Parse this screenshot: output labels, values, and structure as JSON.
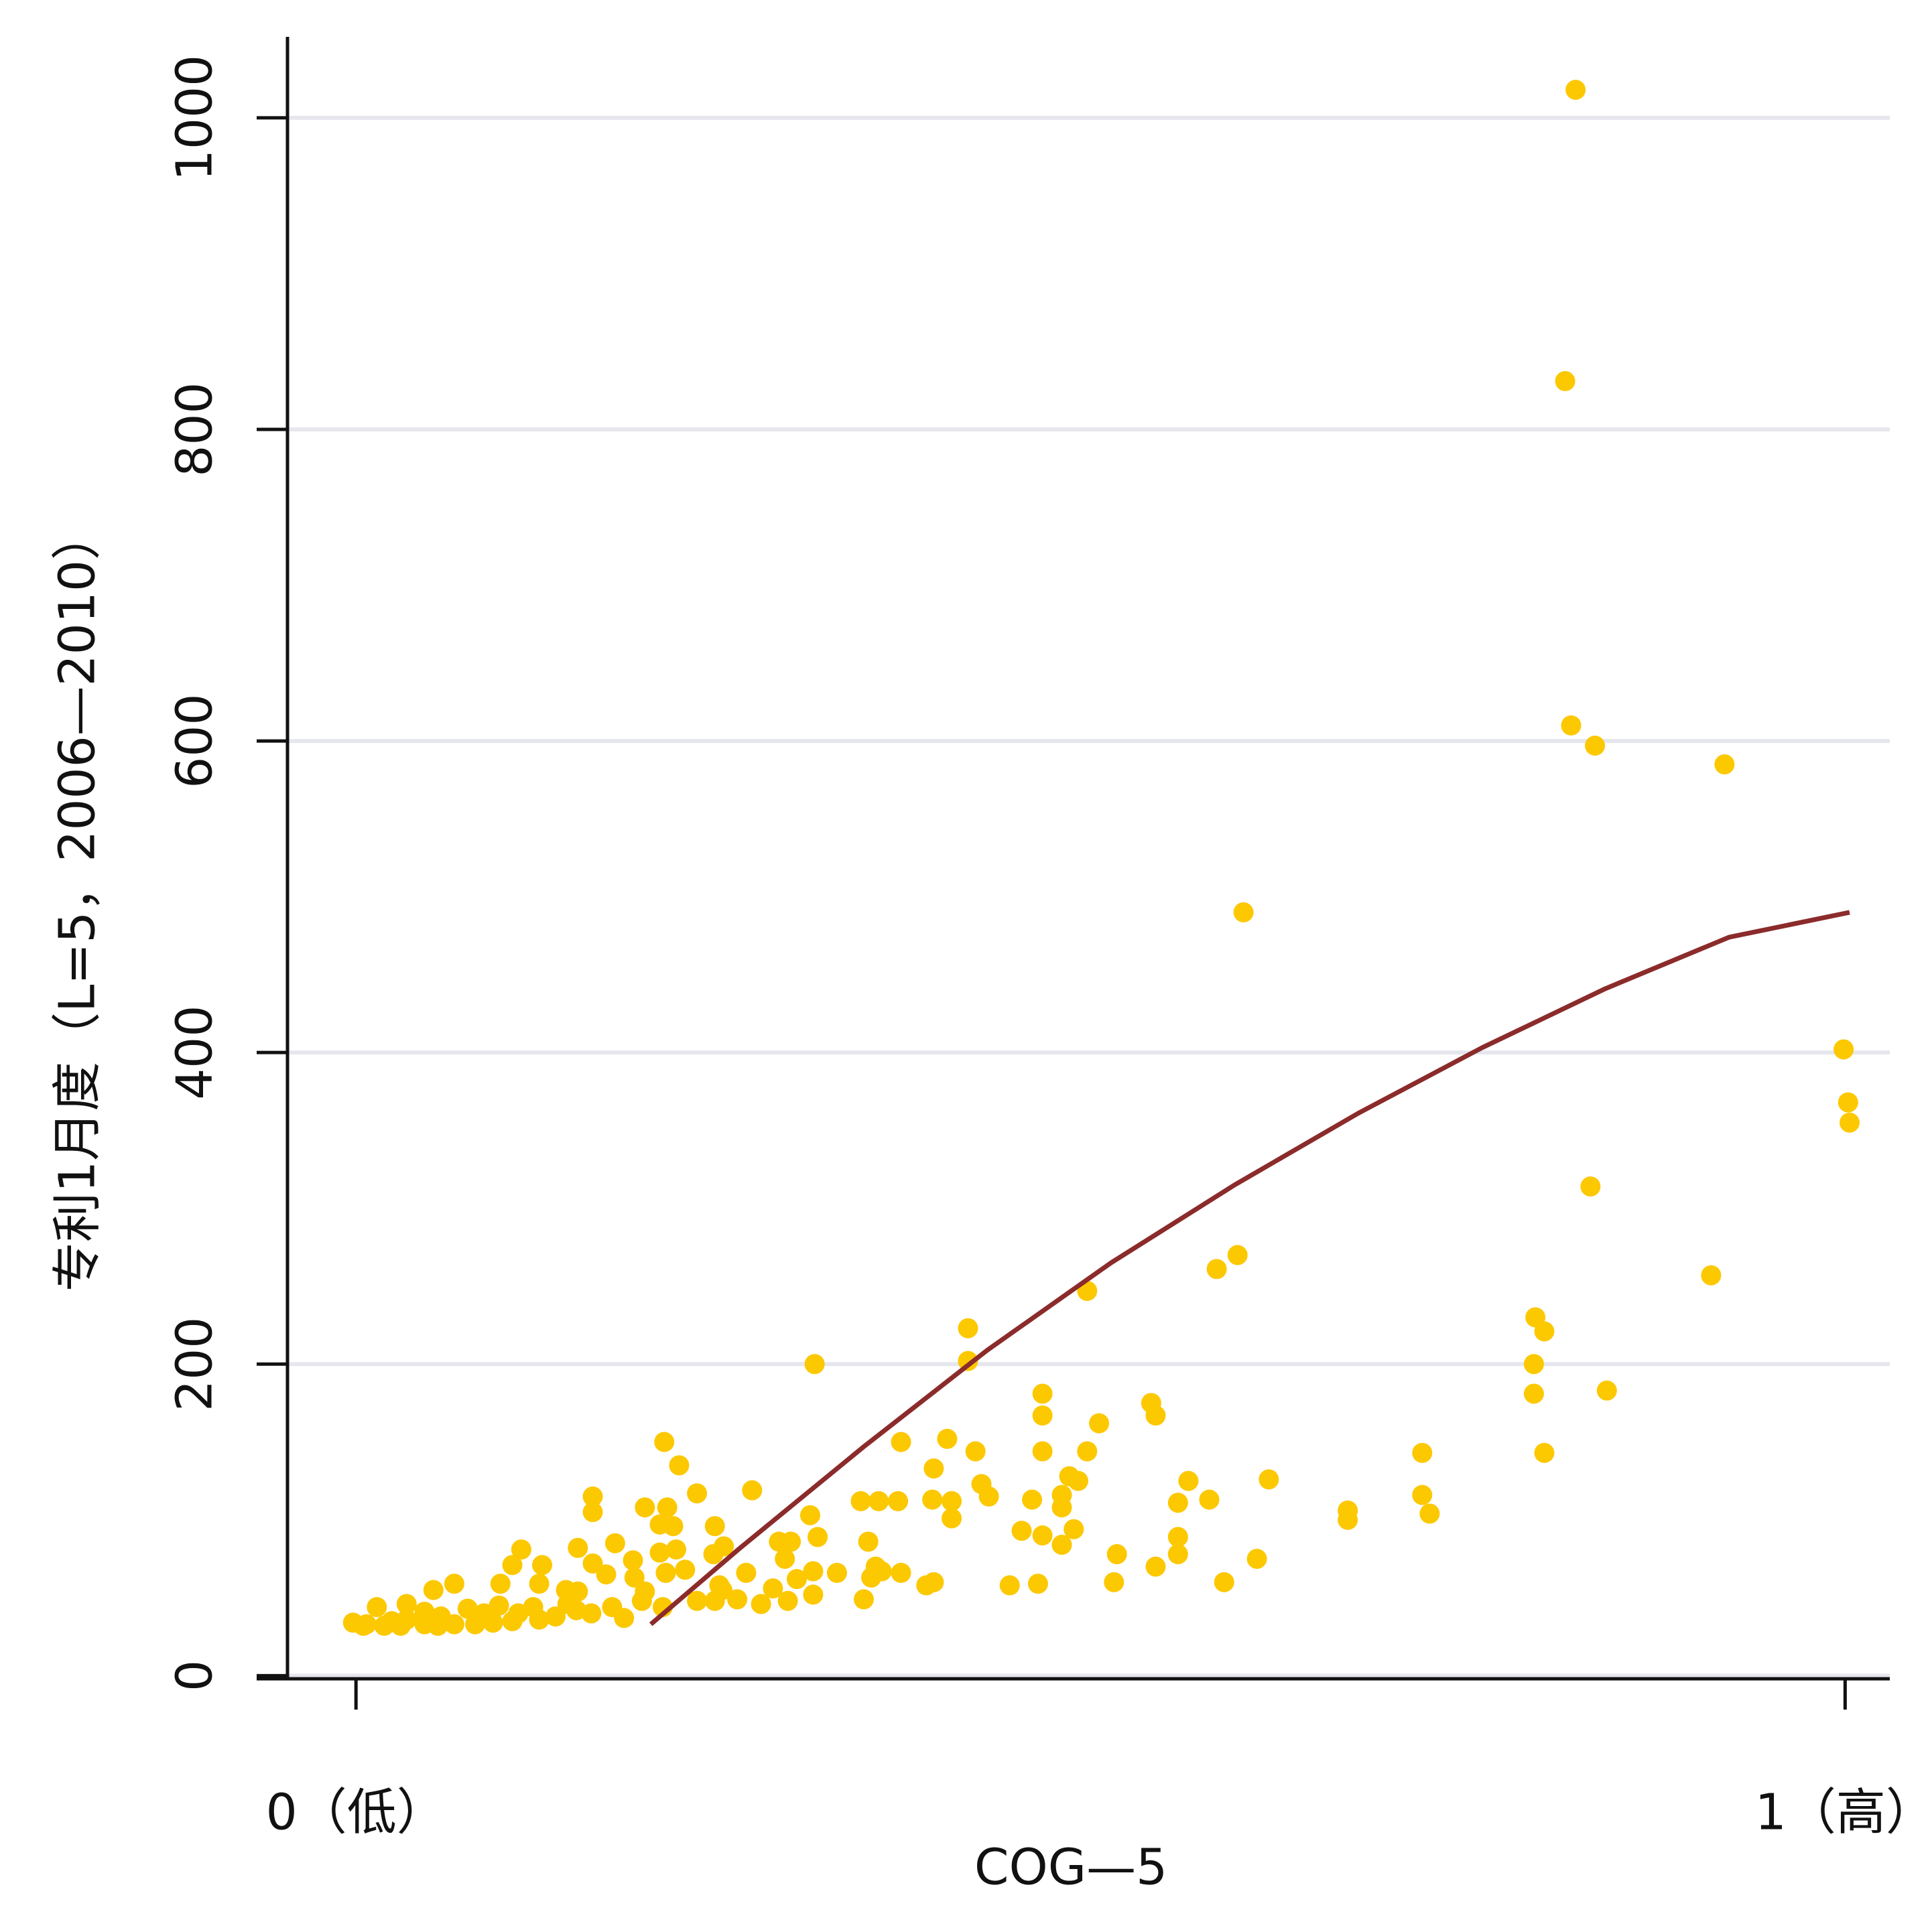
{
  "chart_data": {
    "type": "scatter",
    "xlabel": "COG—5",
    "ylabel": "专利1月度（L=5，2006—2010）",
    "xlim": [
      -0.046,
      1.03
    ],
    "ylim": [
      -2,
      1052
    ],
    "xticks": [
      {
        "value": 0,
        "label": "0（低）"
      },
      {
        "value": 1,
        "label": "1（高）"
      }
    ],
    "yticks": [
      0,
      200,
      400,
      600,
      800,
      1000
    ],
    "grid": true,
    "series": [
      {
        "type": "scatter",
        "color": "#fcc800",
        "x": [
          0.819,
          0.812,
          0.816,
          0.832,
          0.919,
          0.596,
          0.999,
          1.002,
          1.003,
          0.829,
          0.91,
          0.592,
          0.578,
          0.491,
          0.792,
          0.798,
          0.411,
          0.411,
          0.308,
          0.791,
          0.791,
          0.84,
          0.461,
          0.534,
          0.537,
          0.461,
          0.499,
          0.207,
          0.397,
          0.366,
          0.461,
          0.416,
          0.491,
          0.716,
          0.798,
          0.217,
          0.388,
          0.479,
          0.485,
          0.559,
          0.613,
          0.42,
          0.266,
          0.229,
          0.159,
          0.716,
          0.474,
          0.425,
          0.454,
          0.573,
          0.552,
          0.339,
          0.351,
          0.364,
          0.387,
          0.4,
          0.194,
          0.474,
          0.159,
          0.209,
          0.666,
          0.721,
          0.666,
          0.4,
          0.305,
          0.204,
          0.213,
          0.482,
          0.447,
          0.461,
          0.31,
          0.241,
          0.552,
          0.174,
          0.344,
          0.284,
          0.292,
          0.111,
          0.149,
          0.215,
          0.247,
          0.474,
          0.204,
          0.511,
          0.552,
          0.24,
          0.288,
          0.605,
          0.186,
          0.159,
          0.105,
          0.125,
          0.537,
          0.349,
          0.353,
          0.221,
          0.208,
          0.168,
          0.262,
          0.307,
          0.366,
          0.323,
          0.346,
          0.296,
          0.187,
          0.509,
          0.583,
          0.388,
          0.383,
          0.439,
          0.458,
          0.097,
          0.066,
          0.123,
          0.244,
          0.246,
          0.28,
          0.052,
          0.141,
          0.149,
          0.194,
          0.307,
          0.192,
          0.229,
          0.241,
          0.256,
          0.29,
          0.341,
          0.272,
          0.034,
          0.096,
          0.014,
          0.119,
          0.172,
          0.206,
          0.075,
          0.148,
          0.046,
          0.086,
          0.109,
          0.158,
          0.057,
          0.18,
          0.123,
          0.034,
          0.024,
          0.007,
          -0.002,
          0.046,
          0.066,
          0.092,
          0.005,
          0.019,
          0.03,
          0.055,
          0.08,
          0.105,
          0.134,
          0.142
        ],
        "values": [
          1018,
          831,
          610,
          597,
          585,
          490,
          402,
          368,
          355,
          314,
          257,
          270,
          261,
          247,
          230,
          221,
          223,
          202,
          200,
          200,
          181,
          183,
          181,
          175,
          167,
          167,
          162,
          150,
          152,
          150,
          144,
          144,
          144,
          143,
          143,
          135,
          133,
          128,
          125,
          125,
          126,
          123,
          119,
          117,
          115,
          116,
          116,
          115,
          113,
          113,
          111,
          112,
          112,
          112,
          113,
          112,
          108,
          108,
          105,
          108,
          106,
          104,
          100,
          101,
          103,
          97,
          96,
          94,
          93,
          90,
          89,
          96,
          89,
          85,
          86,
          86,
          86,
          81,
          82,
          81,
          83,
          84,
          79,
          78,
          78,
          78,
          75,
          75,
          74,
          72,
          71,
          71,
          70,
          70,
          67,
          68,
          66,
          65,
          66,
          67,
          66,
          66,
          63,
          62,
          63,
          60,
          60,
          60,
          58,
          58,
          59,
          59,
          59,
          59,
          58,
          55,
          56,
          55,
          55,
          54,
          54,
          52,
          48,
          48,
          48,
          49,
          48,
          49,
          46,
          46,
          45,
          44,
          44,
          44,
          44,
          43,
          42,
          41,
          40,
          40,
          40,
          38,
          37,
          36,
          36,
          35,
          33,
          34,
          33,
          33,
          34,
          32,
          32,
          32,
          32,
          33,
          35,
          38,
          46
        ]
      },
      {
        "type": "line",
        "color": "#8b2b2b",
        "x": [
          0.198,
          0.258,
          0.341,
          0.424,
          0.507,
          0.59,
          0.673,
          0.756,
          0.839,
          0.922,
          1.003
        ],
        "values": [
          33,
          82,
          147,
          209,
          265,
          315,
          361,
          403,
          441,
          474,
          490
        ]
      }
    ]
  }
}
